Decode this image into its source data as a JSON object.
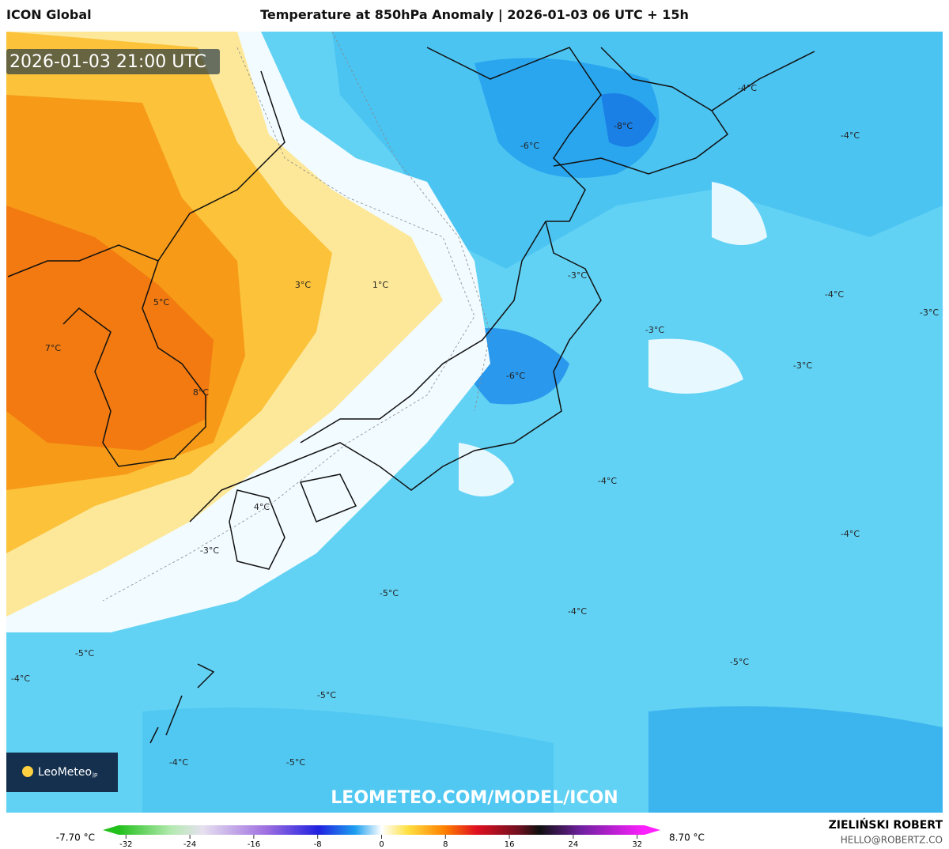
{
  "header": {
    "left": "ICON Global",
    "title": "Temperature at 850hPa Anomaly | 2026-01-03 06 UTC + 15h"
  },
  "map": {
    "valid_time": "2026-01-03 21:00 UTC",
    "labels": [
      "-4°C",
      "-8°C",
      "-6°C",
      "-4°C",
      "3°C",
      "1°C",
      "-3°C",
      "-4°C",
      "5°C",
      "-3°C",
      "-3°C",
      "7°C",
      "-3°C",
      "-6°C",
      "8°C",
      "-4°C",
      "4°C",
      "-3°C",
      "-4°C",
      "-5°C",
      "-4°C",
      "-5°C",
      "-5°C",
      "-4°C",
      "-5°C",
      "-4°C",
      "-5°C"
    ],
    "logo": "LeoMeteo",
    "logo_suffix": "jp",
    "watermark": "LEOMETEO.COM/MODEL/ICON"
  },
  "colorbar": {
    "min_label": "-7.70 °C",
    "max_label": "8.70 °C",
    "ticks": [
      -32,
      -24,
      -16,
      -8,
      0,
      8,
      16,
      24,
      32
    ]
  },
  "footer": {
    "author": "ZIELIŃSKI ROBERT",
    "email": "HELLO@ROBERTZ.CO"
  }
}
